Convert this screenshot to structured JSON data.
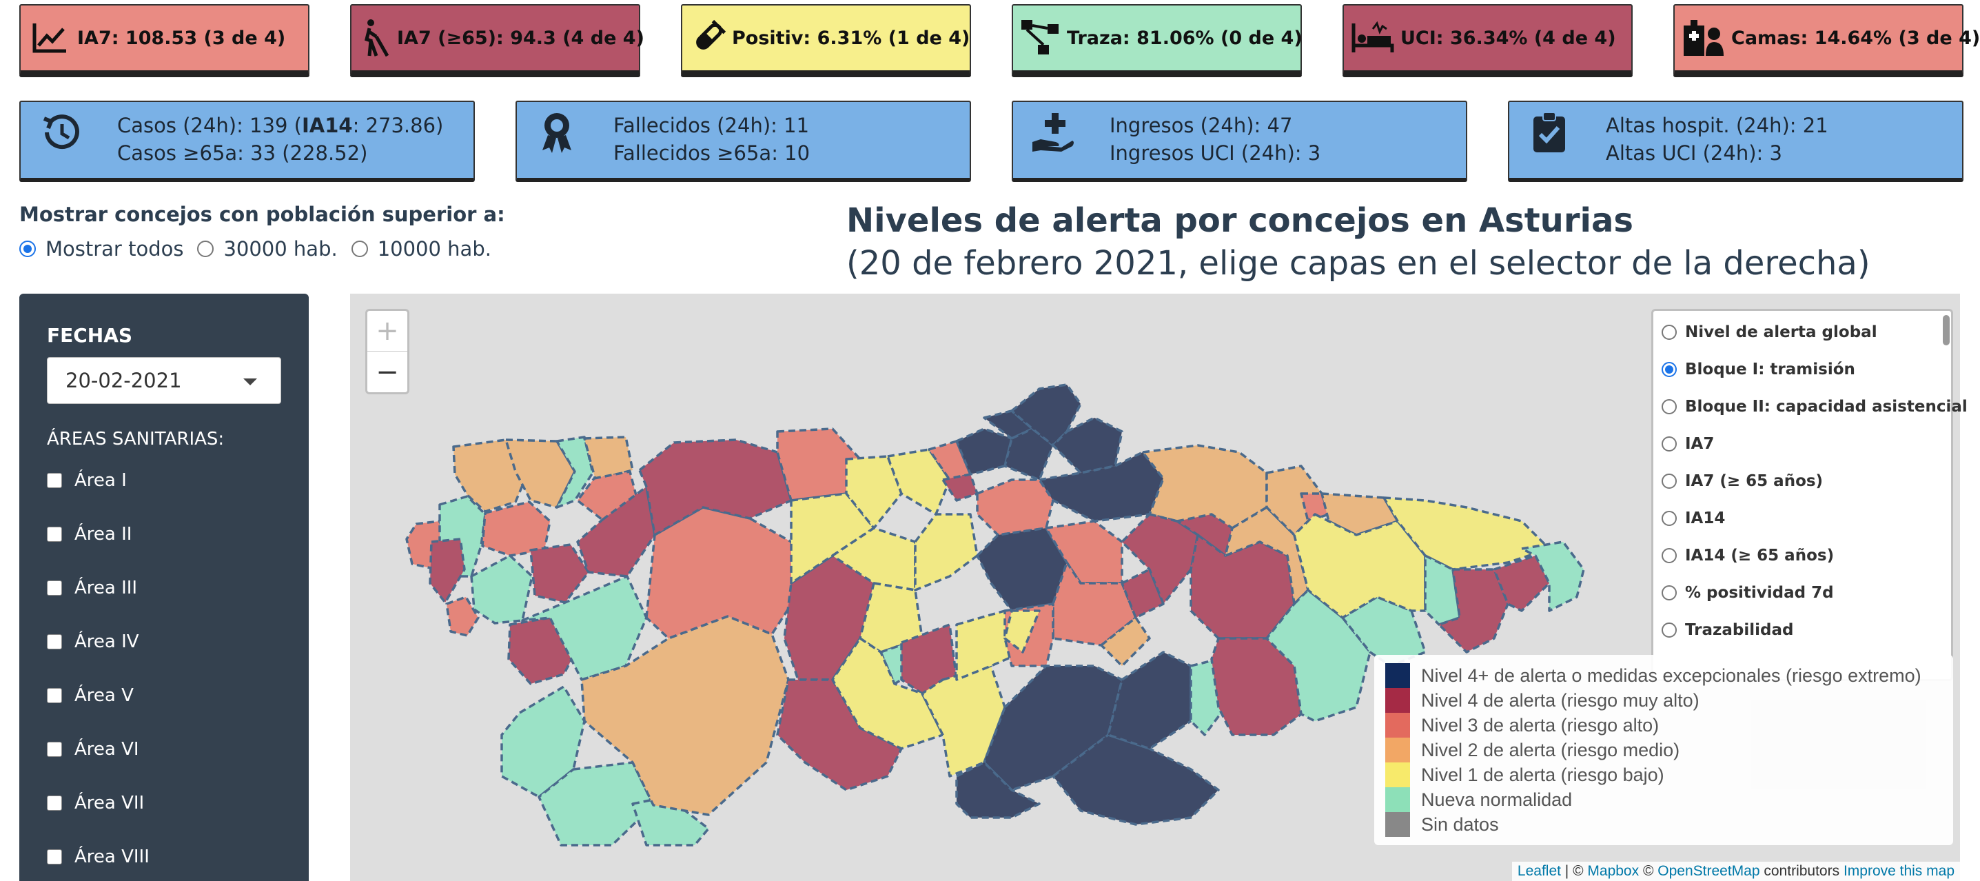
{
  "indicators": [
    {
      "label": "IA7: 108.53 (3 de 4)",
      "icon": "chart-line-icon",
      "color": "#e98b83"
    },
    {
      "label": "IA7 (≥65): 94.3 (4 de 4)",
      "icon": "blind-person-icon",
      "color": "#b45468"
    },
    {
      "label": "Positiv: 6.31% (1 de 4)",
      "icon": "test-tube-icon",
      "color": "#f7ef8c"
    },
    {
      "label": "Traza: 81.06% (0 de 4)",
      "icon": "network-icon",
      "color": "#a6e6c4"
    },
    {
      "label": "UCI: 36.34% (4 de 4)",
      "icon": "hospital-bed-icon",
      "color": "#b45468"
    },
    {
      "label": "Camas: 14.64% (3 de 4)",
      "icon": "hospital-user-icon",
      "color": "#e98b83"
    }
  ],
  "stats": [
    {
      "line1_pre": "Casos (24h): 139 (",
      "line1_bold": "IA14",
      "line1_post": ": 273.86)",
      "line2": "Casos ≥65a: 33 (228.52)",
      "icon": "history-icon"
    },
    {
      "line1_pre": "Fallecidos (24h): 11",
      "line1_bold": "",
      "line1_post": "",
      "line2": "Fallecidos ≥65a: 10",
      "icon": "ribbon-award-icon"
    },
    {
      "line1_pre": "Ingresos (24h): 47",
      "line1_bold": "",
      "line1_post": "",
      "line2": "Ingresos UCI (24h): 3",
      "icon": "hand-holding-medical-icon"
    },
    {
      "line1_pre": "Altas hospit. (24h): 21",
      "line1_bold": "",
      "line1_post": "",
      "line2": "Altas UCI (24h): 3",
      "icon": "clipboard-check-icon"
    }
  ],
  "population_filter": {
    "title": "Mostrar concejos con población superior a:",
    "options": [
      "Mostrar todos",
      "30000 hab.",
      "10000 hab."
    ],
    "selected": "Mostrar todos"
  },
  "map_title": {
    "line1": "Niveles de alerta por concejos en Asturias",
    "line2": "(20 de febrero 2021, elige capas en el selector de la derecha)"
  },
  "sidebar": {
    "dates_header": "FECHAS",
    "date_value": "20-02-2021",
    "areas_header": "ÁREAS SANITARIAS:",
    "areas": [
      "Área I",
      "Área II",
      "Área III",
      "Área IV",
      "Área V",
      "Área VI",
      "Área VII",
      "Área VIII"
    ]
  },
  "map": {
    "zoom_in": "+",
    "zoom_out": "−",
    "layers": [
      "Nivel de alerta global",
      "Bloque I: tramisión",
      "Bloque II: capacidad asistencial",
      "IA7",
      "IA7 (≥ 65 años)",
      "IA14",
      "IA14 (≥ 65 años)",
      "% positividad 7d",
      "Trazabilidad"
    ],
    "selected_layer": "Bloque I: tramisión",
    "legend": [
      {
        "label": "Nivel 4+ de alerta o medidas excepcionales (riesgo extremo)",
        "color": "#102a5c"
      },
      {
        "label": "Nivel 4 de alerta (riesgo muy alto)",
        "color": "#a52a45"
      },
      {
        "label": "Nivel 3 de alerta (riesgo alto)",
        "color": "#e36a5e"
      },
      {
        "label": "Nivel 2 de alerta (riesgo medio)",
        "color": "#f2a765"
      },
      {
        "label": "Nivel 1 de alerta (riesgo bajo)",
        "color": "#f7ea6b"
      },
      {
        "label": "Nueva normalidad",
        "color": "#8de0b8"
      },
      {
        "label": "Sin datos",
        "color": "#888888"
      }
    ],
    "attribution": {
      "leaflet": "Leaflet",
      "sep": " | © ",
      "mapbox": "Mapbox",
      "osm_pre": " © ",
      "osm": "OpenStreetMap",
      "contributors": " contributors ",
      "improve": "Improve this map"
    },
    "colors": {
      "c4p": "#3e4a68",
      "c4": "#b0546a",
      "c3": "#e4857a",
      "c2": "#e9b782",
      "c1": "#f1e985",
      "c0": "#9be2c6",
      "border": "#4a6a8c"
    }
  }
}
